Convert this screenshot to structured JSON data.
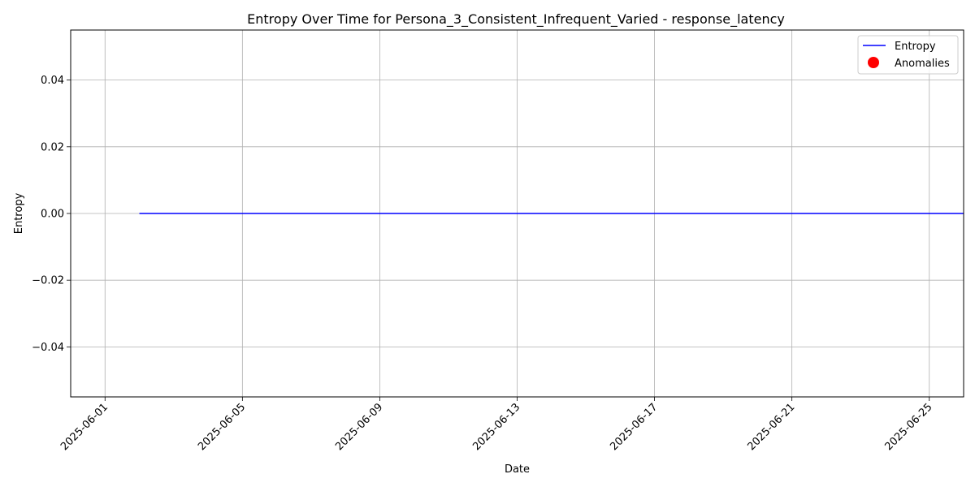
{
  "chart_data": {
    "type": "line",
    "title": "Entropy Over Time for Persona_3_Consistent_Infrequent_Varied - response_latency",
    "xlabel": "Date",
    "ylabel": "Entropy",
    "x_range": [
      "2025-05-31",
      "2025-06-26"
    ],
    "ylim": [
      -0.055,
      0.055
    ],
    "x_ticks": [
      "2025-06-01",
      "2025-06-05",
      "2025-06-09",
      "2025-06-13",
      "2025-06-17",
      "2025-06-21",
      "2025-06-25"
    ],
    "y_ticks": [
      0.04,
      0.02,
      0.0,
      -0.02,
      -0.04
    ],
    "y_tick_labels": [
      "0.04",
      "0.02",
      "0.00",
      "−0.02",
      "−0.04"
    ],
    "grid": true,
    "legend_position": "top-right",
    "series": [
      {
        "name": "Entropy",
        "kind": "line",
        "color": "#0000ff",
        "x": [
          "2025-06-02",
          "2025-06-26"
        ],
        "y": [
          0.0,
          0.0
        ]
      },
      {
        "name": "Anomalies",
        "kind": "scatter",
        "color": "#ff0000",
        "x": [],
        "y": []
      }
    ]
  }
}
